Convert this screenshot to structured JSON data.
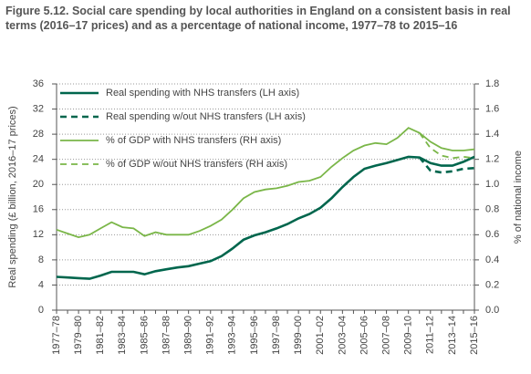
{
  "chart_data": {
    "type": "line",
    "title": "Figure 5.12. Social care spending by local authorities in England on a consistent basis in real terms (2016–17 prices) and as a percentage of national income, 1977–78 to 2015–16",
    "ylabel": "Real spending (£ billion, 2016–17 prices)",
    "y2label": "% of national income",
    "categories": [
      "1977–78",
      null,
      "1979–80",
      null,
      "1981–82",
      null,
      "1983–84",
      null,
      "1985–86",
      null,
      "1987–88",
      null,
      "1989–90",
      null,
      "1991–92",
      null,
      "1993–94",
      null,
      "1995–96",
      null,
      "1997–98",
      null,
      "1999–00",
      null,
      "2001–02",
      null,
      "2003–04",
      null,
      "2005–06",
      null,
      "2007–08",
      null,
      "2009–10",
      null,
      "2011–12",
      null,
      "2013–14",
      null,
      "2015–16"
    ],
    "series": [
      {
        "name": "Real spending with NHS transfers (LH axis)",
        "color": "#00664d",
        "dash": false,
        "axis": "y",
        "values": [
          5.3,
          5.2,
          5.1,
          5.0,
          5.5,
          6.1,
          6.1,
          6.1,
          5.7,
          6.2,
          6.5,
          6.8,
          7.0,
          7.4,
          7.8,
          8.6,
          9.8,
          11.2,
          11.9,
          12.4,
          13.0,
          13.7,
          14.6,
          15.3,
          16.3,
          17.8,
          19.6,
          21.2,
          22.5,
          23.0,
          23.4,
          23.9,
          24.4,
          24.3,
          23.4,
          23.0,
          23.0,
          23.6,
          24.4
        ]
      },
      {
        "name": "Real spending w/out NHS transfers (LH axis)",
        "color": "#00664d",
        "dash": true,
        "axis": "y",
        "values": [
          null,
          null,
          null,
          null,
          null,
          null,
          null,
          null,
          null,
          null,
          null,
          null,
          null,
          null,
          null,
          null,
          null,
          null,
          null,
          null,
          null,
          null,
          null,
          null,
          null,
          null,
          null,
          null,
          null,
          null,
          null,
          null,
          null,
          24.3,
          22.2,
          21.9,
          22.1,
          22.5,
          22.6
        ]
      },
      {
        "name": "% of GDP with NHS transfers (RH axis)",
        "color": "#7ab648",
        "dash": false,
        "axis": "y2",
        "values": [
          0.64,
          0.61,
          0.58,
          0.6,
          0.65,
          0.7,
          0.66,
          0.65,
          0.59,
          0.62,
          0.6,
          0.6,
          0.6,
          0.63,
          0.67,
          0.72,
          0.8,
          0.89,
          0.94,
          0.96,
          0.97,
          0.99,
          1.02,
          1.03,
          1.06,
          1.14,
          1.21,
          1.27,
          1.31,
          1.33,
          1.32,
          1.37,
          1.45,
          1.41,
          1.34,
          1.29,
          1.27,
          1.27,
          1.28
        ]
      },
      {
        "name": "% of GDP w/out NHS transfers (RH axis)",
        "color": "#7ab648",
        "dash": true,
        "axis": "y2",
        "values": [
          null,
          null,
          null,
          null,
          null,
          null,
          null,
          null,
          null,
          null,
          null,
          null,
          null,
          null,
          null,
          null,
          null,
          null,
          null,
          null,
          null,
          null,
          null,
          null,
          null,
          null,
          null,
          null,
          null,
          null,
          null,
          null,
          null,
          1.41,
          1.29,
          1.23,
          1.21,
          1.22,
          1.21
        ]
      }
    ],
    "ylim": [
      0,
      36
    ],
    "yticks": [
      0,
      4,
      8,
      12,
      16,
      20,
      24,
      28,
      32,
      36
    ],
    "y2lim": [
      0,
      1.8
    ],
    "y2ticks": [
      {
        "value": 0,
        "label": "0.0"
      },
      0.2,
      0.4,
      0.6,
      0.8,
      {
        "value": 1,
        "label": "1.0"
      },
      1.2,
      1.4,
      1.6,
      1.8
    ],
    "grid": true,
    "legend": "upper left"
  }
}
